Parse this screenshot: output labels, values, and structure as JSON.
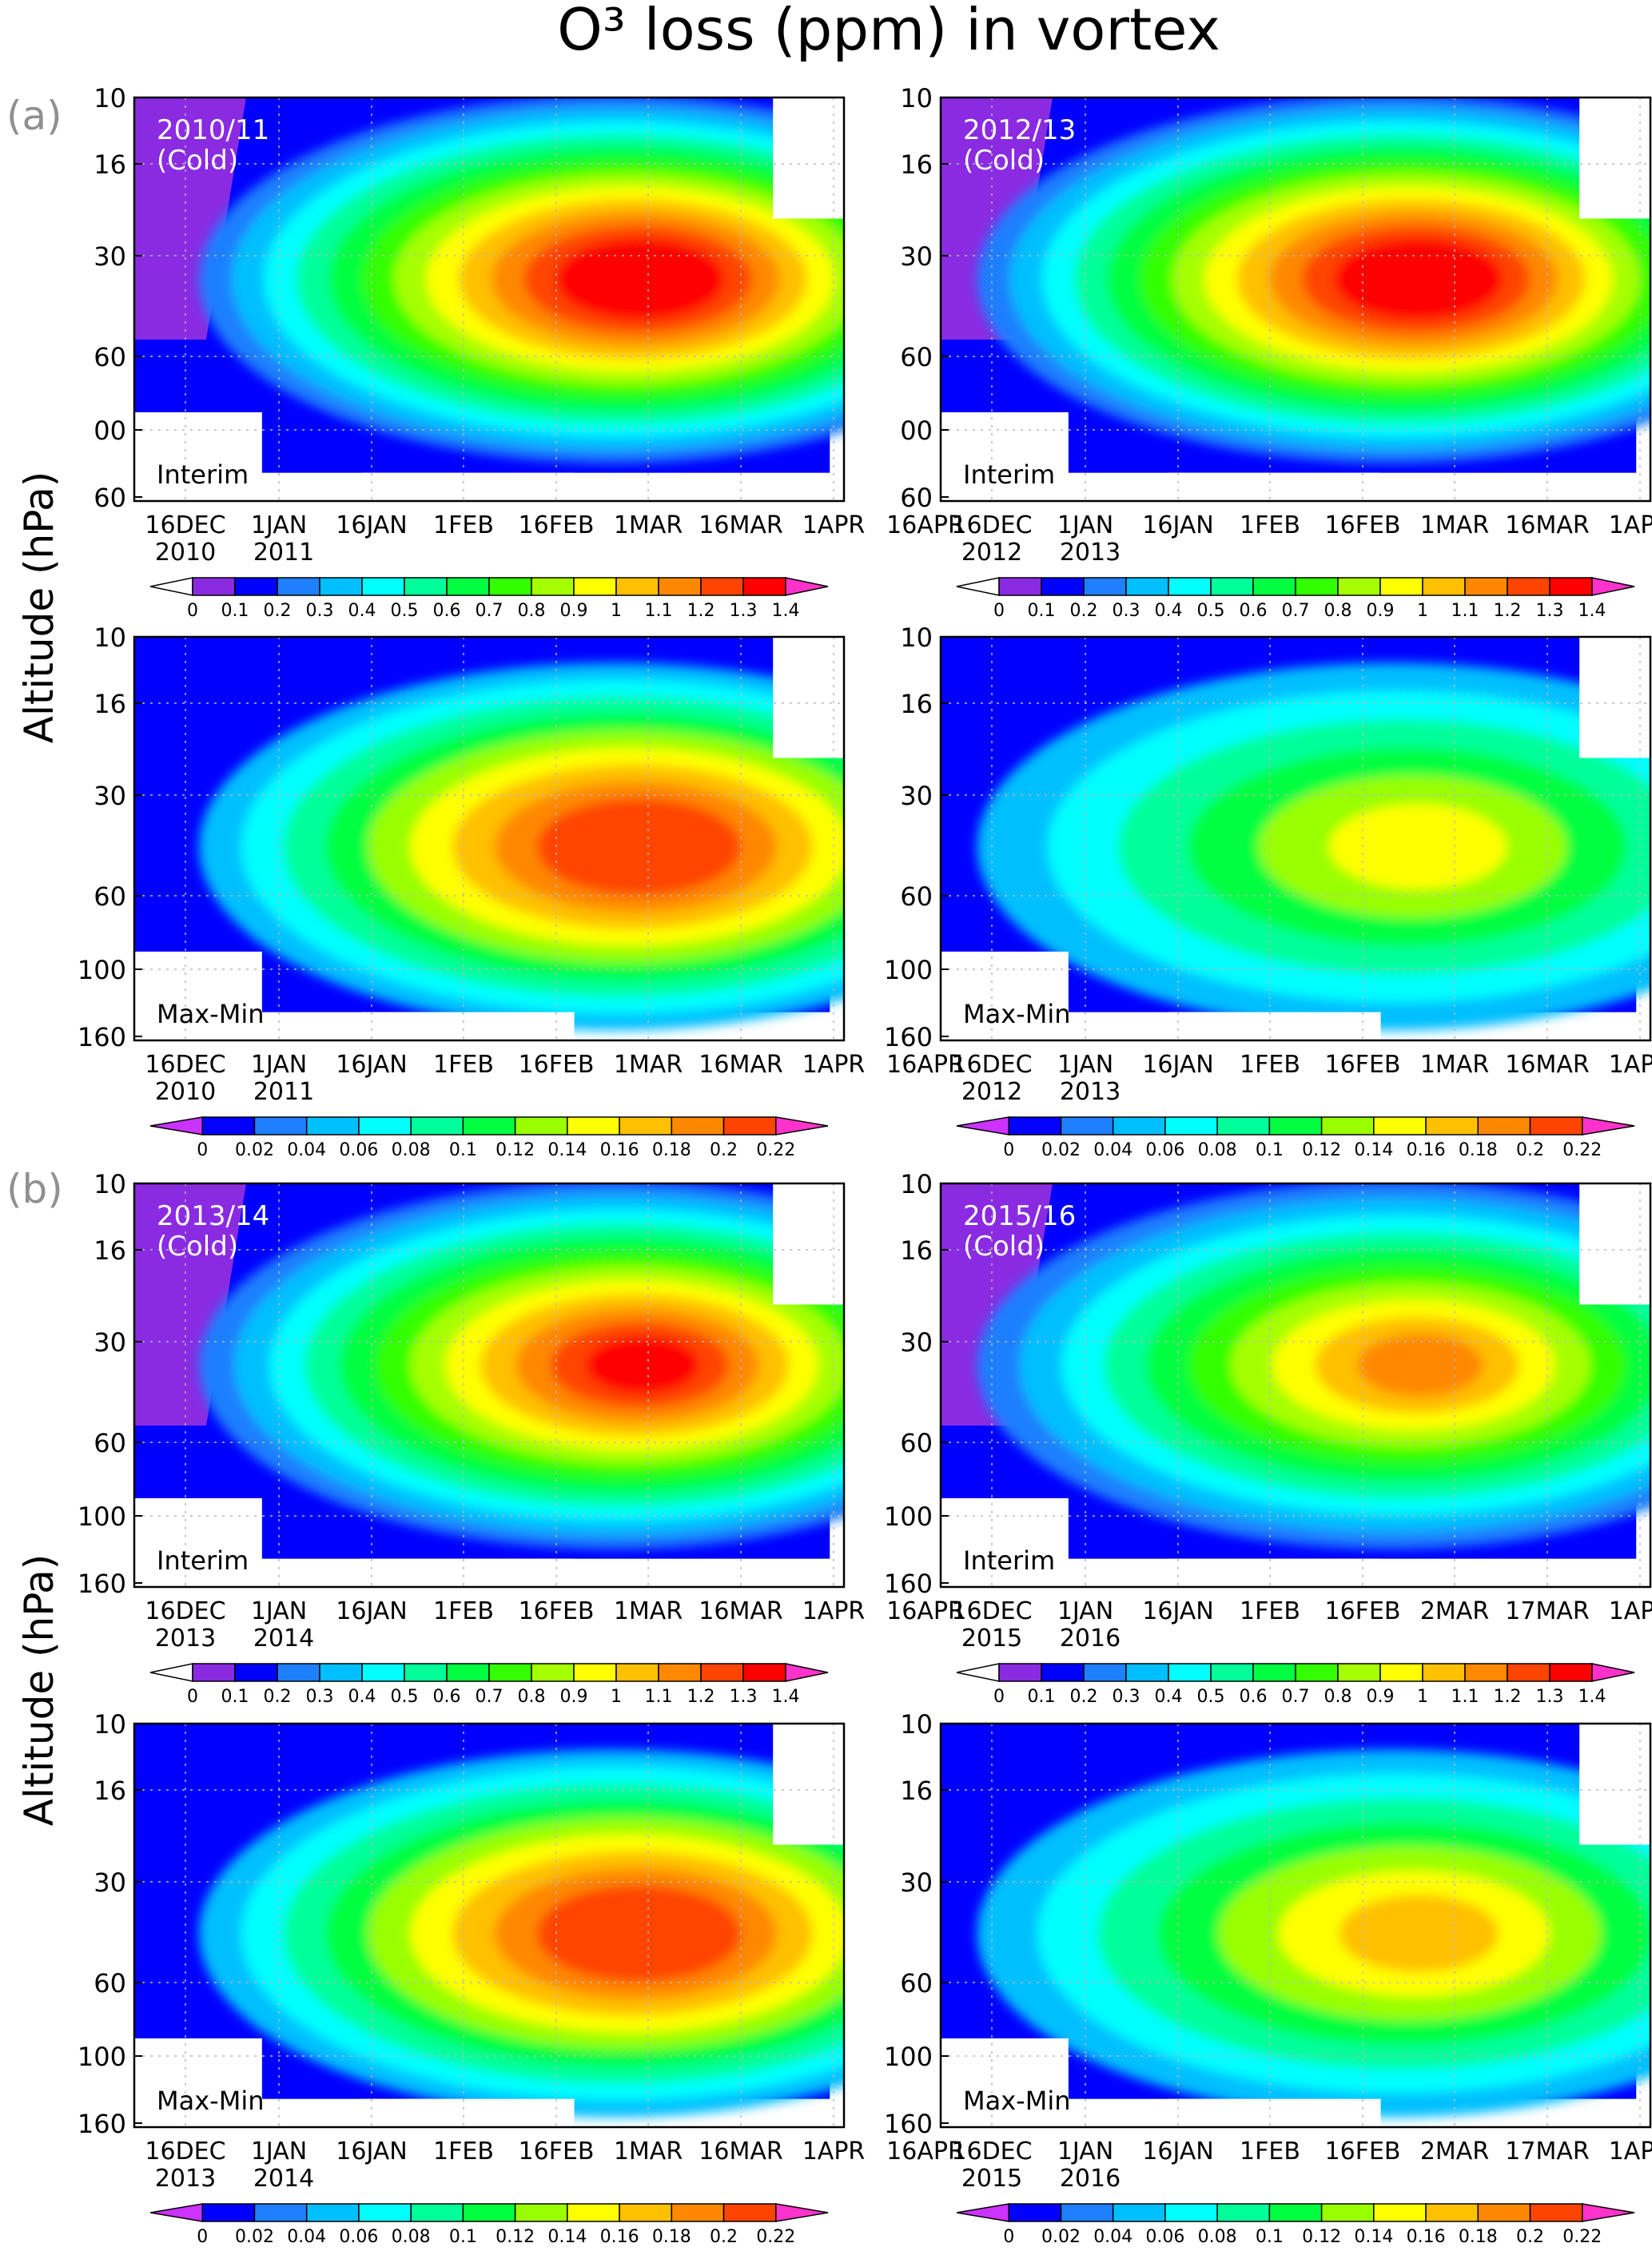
{
  "figure_title": "O³ loss (ppm) in vortex",
  "section_labels": [
    "(a)",
    "(b)"
  ],
  "y_axis_label": "Altitude (hPa)",
  "y_ticks": [
    "10",
    "16",
    "30",
    "60",
    "100",
    "160"
  ],
  "top_row_ticks": [
    "10",
    "16",
    "30",
    "60",
    "00",
    "60"
  ],
  "x_ticks_regular": [
    "16DEC",
    "1JAN",
    "16JAN",
    "1FEB",
    "16FEB",
    "1MAR",
    "16MAR",
    "1APR",
    "16APR"
  ],
  "x_ticks_2016": [
    "16DEC",
    "1JAN",
    "16JAN",
    "1FEB",
    "16FEB",
    "2MAR",
    "17MAR",
    "1APR",
    "16APR"
  ],
  "interim_levels": [
    "0",
    "0.1",
    "0.2",
    "0.3",
    "0.4",
    "0.5",
    "0.6",
    "0.7",
    "0.8",
    "0.9",
    "1",
    "1.1",
    "1.2",
    "1.3",
    "1.4"
  ],
  "maxmin_levels": [
    "0",
    "0.02",
    "0.04",
    "0.06",
    "0.08",
    "0.1",
    "0.12",
    "0.14",
    "0.16",
    "0.18",
    "0.2",
    "0.22"
  ],
  "interim_colors": [
    "#ffffff",
    "#8a2be2",
    "#0000ff",
    "#1e7fff",
    "#00bfff",
    "#00ffff",
    "#00ff9a",
    "#00ff40",
    "#33ff00",
    "#a6ff00",
    "#ffff00",
    "#ffc000",
    "#ff8800",
    "#ff4400",
    "#ff0000",
    "#ff33cc"
  ],
  "maxmin_colors": [
    "#cc33ff",
    "#0000ff",
    "#1e7fff",
    "#00bfff",
    "#00ffff",
    "#00ff9a",
    "#00ff40",
    "#99ff00",
    "#ffff00",
    "#ffc000",
    "#ff8800",
    "#ff4400",
    "#ff33cc"
  ],
  "chart_data": [
    {
      "type": "heatmap",
      "panel": "2010/11 Interim",
      "season_label": [
        "2010/11",
        "(Cold)"
      ],
      "tag": "Interim",
      "years": [
        "2010",
        "2011"
      ],
      "xticks": "x_ticks_regular",
      "levels": "interim_levels",
      "peak_value": 1.4
    },
    {
      "type": "heatmap",
      "panel": "2012/13 Interim",
      "season_label": [
        "2012/13",
        "(Cold)"
      ],
      "tag": "Interim",
      "years": [
        "2012",
        "2013"
      ],
      "xticks": "x_ticks_regular",
      "levels": "interim_levels",
      "peak_value": 1.3
    },
    {
      "type": "heatmap",
      "panel": "2010/11 Max-Min",
      "tag": "Max-Min",
      "years": [
        "2010",
        "2011"
      ],
      "xticks": "x_ticks_regular",
      "levels": "maxmin_levels",
      "peak_value": 0.2
    },
    {
      "type": "heatmap",
      "panel": "2012/13 Max-Min",
      "tag": "Max-Min",
      "years": [
        "2012",
        "2013"
      ],
      "xticks": "x_ticks_regular",
      "levels": "maxmin_levels",
      "peak_value": 0.12
    },
    {
      "type": "heatmap",
      "panel": "2013/14 Interim",
      "season_label": [
        "2013/14",
        "(Cold)"
      ],
      "tag": "Interim",
      "years": [
        "2013",
        "2014"
      ],
      "xticks": "x_ticks_regular",
      "levels": "interim_levels",
      "peak_value": 1.2
    },
    {
      "type": "heatmap",
      "panel": "2015/16 Interim",
      "season_label": [
        "2015/16",
        "(Cold)"
      ],
      "tag": "Interim",
      "years": [
        "2015",
        "2016"
      ],
      "xticks": "x_ticks_2016",
      "levels": "interim_levels",
      "peak_value": 1.0
    },
    {
      "type": "heatmap",
      "panel": "2013/14 Max-Min",
      "tag": "Max-Min",
      "years": [
        "2013",
        "2014"
      ],
      "xticks": "x_ticks_regular",
      "levels": "maxmin_levels",
      "peak_value": 0.2
    },
    {
      "type": "heatmap",
      "panel": "2015/16 Max-Min",
      "tag": "Max-Min",
      "years": [
        "2015",
        "2016"
      ],
      "xticks": "x_ticks_2016",
      "levels": "maxmin_levels",
      "peak_value": 0.14
    }
  ]
}
